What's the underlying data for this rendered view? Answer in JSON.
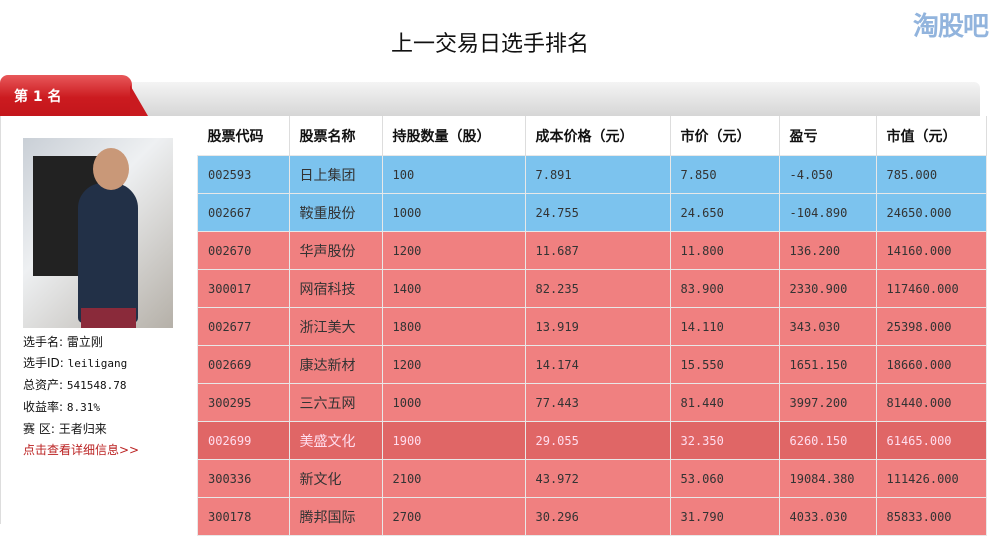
{
  "title": "上一交易日选手排名",
  "rank_tab": "第 1 名",
  "player": {
    "name_label": "选手名:",
    "name": "雷立刚",
    "id_label": "选手ID:",
    "id": "leiligang",
    "assets_label": "总资产:",
    "assets": "541548.78",
    "return_label": "收益率:",
    "return": "8.31%",
    "zone_label": "赛 区:",
    "zone": "王者归来",
    "detail_link": "点击查看详细信息>>"
  },
  "colors": {
    "loss_row": "#7cc3ee",
    "gain_row": "#f08080",
    "highlight_row": "#e06666",
    "tab": "#cc1b20"
  },
  "table": {
    "headers": [
      "股票代码",
      "股票名称",
      "持股数量（股）",
      "成本价格（元）",
      "市价（元）",
      "盈亏",
      "市值（元）"
    ],
    "rows": [
      [
        "002593",
        "日上集团",
        "100",
        "7.891",
        "7.850",
        "-4.050",
        "785.000"
      ],
      [
        "002667",
        "鞍重股份",
        "1000",
        "24.755",
        "24.650",
        "-104.890",
        "24650.000"
      ],
      [
        "002670",
        "华声股份",
        "1200",
        "11.687",
        "11.800",
        "136.200",
        "14160.000"
      ],
      [
        "300017",
        "网宿科技",
        "1400",
        "82.235",
        "83.900",
        "2330.900",
        "117460.000"
      ],
      [
        "002677",
        "浙江美大",
        "1800",
        "13.919",
        "14.110",
        "343.030",
        "25398.000"
      ],
      [
        "002669",
        "康达新材",
        "1200",
        "14.174",
        "15.550",
        "1651.150",
        "18660.000"
      ],
      [
        "300295",
        "三六五网",
        "1000",
        "77.443",
        "81.440",
        "3997.200",
        "81440.000"
      ],
      [
        "002699",
        "美盛文化",
        "1900",
        "29.055",
        "32.350",
        "6260.150",
        "61465.000"
      ],
      [
        "300336",
        "新文化",
        "2100",
        "43.972",
        "53.060",
        "19084.380",
        "111426.000"
      ],
      [
        "300178",
        "腾邦国际",
        "2700",
        "30.296",
        "31.790",
        "4033.030",
        "85833.000"
      ]
    ]
  },
  "watermark": "淘股吧"
}
